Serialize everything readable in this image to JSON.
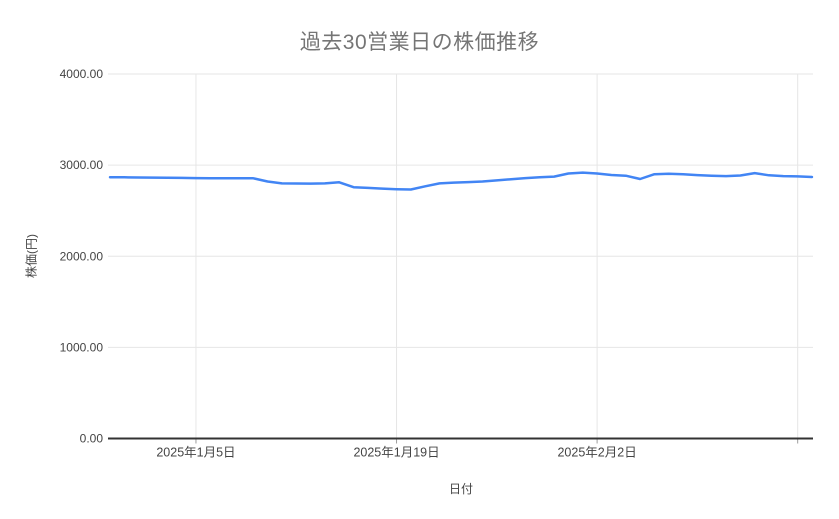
{
  "page": {
    "background_color": "#ffffff"
  },
  "chart_data": {
    "type": "line",
    "title": "過去30営業日の株価推移",
    "xlabel": "日付",
    "ylabel": "株価(円)",
    "ylim": [
      0,
      4000
    ],
    "grid": true,
    "legend": "none",
    "line_color": "#4285f4",
    "title_color": "#757575",
    "axis_text_color": "#444444",
    "gridline_color": "#e6e6e6",
    "baseline_color": "#333333",
    "tick_mark_color": "#9e9e9e",
    "y_ticks": [
      {
        "value": 0,
        "label": "0.00"
      },
      {
        "value": 1000,
        "label": "1000.00"
      },
      {
        "value": 2000,
        "label": "2000.00"
      },
      {
        "value": 3000,
        "label": "3000.00"
      },
      {
        "value": 4000,
        "label": "4000.00"
      }
    ],
    "x_ticks": [
      {
        "index": 6,
        "date": "2025-01-05",
        "label": "2025年1月5日"
      },
      {
        "index": 20,
        "date": "2025-01-19",
        "label": "2025年1月19日"
      },
      {
        "index": 34,
        "date": "2025-02-02",
        "label": "2025年2月2日"
      },
      {
        "index": 48,
        "date": "2025-02-16",
        "label": ""
      }
    ],
    "x_range": {
      "start": "2024-12-30",
      "end": "2025-02-17",
      "num_points": 50
    },
    "series": [
      {
        "name": "株価",
        "x": [
          "2024-12-30",
          "2024-12-31",
          "2025-01-01",
          "2025-01-02",
          "2025-01-03",
          "2025-01-04",
          "2025-01-05",
          "2025-01-06",
          "2025-01-07",
          "2025-01-08",
          "2025-01-09",
          "2025-01-10",
          "2025-01-11",
          "2025-01-12",
          "2025-01-13",
          "2025-01-14",
          "2025-01-15",
          "2025-01-16",
          "2025-01-17",
          "2025-01-18",
          "2025-01-19",
          "2025-01-20",
          "2025-01-21",
          "2025-01-22",
          "2025-01-23",
          "2025-01-24",
          "2025-01-25",
          "2025-01-26",
          "2025-01-27",
          "2025-01-28",
          "2025-01-29",
          "2025-01-30",
          "2025-01-31",
          "2025-02-01",
          "2025-02-02",
          "2025-02-03",
          "2025-02-04",
          "2025-02-05",
          "2025-02-06",
          "2025-02-07",
          "2025-02-08",
          "2025-02-09",
          "2025-02-10",
          "2025-02-11",
          "2025-02-12",
          "2025-02-13",
          "2025-02-14",
          "2025-02-15",
          "2025-02-16",
          "2025-02-17"
        ],
        "values": [
          2868,
          2866,
          2864,
          2863,
          2861,
          2860,
          2858,
          2857,
          2856,
          2856,
          2855,
          2820,
          2800,
          2798,
          2797,
          2799,
          2812,
          2758,
          2750,
          2742,
          2736,
          2733,
          2768,
          2800,
          2808,
          2814,
          2820,
          2832,
          2845,
          2858,
          2866,
          2874,
          2908,
          2918,
          2908,
          2892,
          2884,
          2848,
          2900,
          2906,
          2900,
          2890,
          2884,
          2880,
          2886,
          2912,
          2888,
          2880,
          2876,
          2870
        ]
      }
    ]
  }
}
